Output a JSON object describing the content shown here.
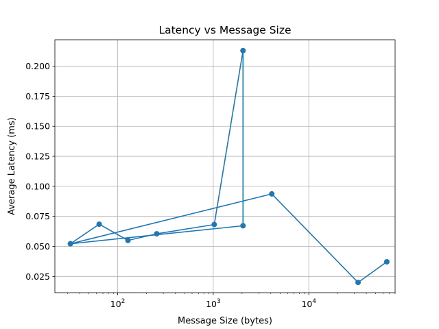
{
  "chart_data": {
    "type": "line",
    "title": "Latency vs Message Size",
    "xlabel": "Message Size (bytes)",
    "ylabel": "Average Latency (ms)",
    "xscale": "log",
    "xlim": [
      22,
      80000
    ],
    "ylim": [
      0.0115,
      0.222
    ],
    "grid": true,
    "x_ticks": [
      {
        "value": 100,
        "base": "10",
        "exp": "2"
      },
      {
        "value": 1000,
        "base": "10",
        "exp": "3"
      },
      {
        "value": 10000,
        "base": "10",
        "exp": "4"
      }
    ],
    "y_ticks": [
      {
        "value": 0.025,
        "label": "0.025"
      },
      {
        "value": 0.05,
        "label": "0.050"
      },
      {
        "value": 0.075,
        "label": "0.075"
      },
      {
        "value": 0.1,
        "label": "0.100"
      },
      {
        "value": 0.125,
        "label": "0.125"
      },
      {
        "value": 0.15,
        "label": "0.150"
      },
      {
        "value": 0.175,
        "label": "0.175"
      },
      {
        "value": 0.2,
        "label": "0.200"
      }
    ],
    "series": [
      {
        "color": "#1f77b4",
        "marker": "circle",
        "x": [
          32,
          64,
          128,
          256,
          1024,
          2048,
          2048,
          32,
          4096,
          32768,
          65536
        ],
        "y": [
          0.0522,
          0.0685,
          0.055,
          0.0605,
          0.0682,
          0.213,
          0.0672,
          0.0522,
          0.0937,
          0.02,
          0.0372
        ]
      }
    ]
  }
}
